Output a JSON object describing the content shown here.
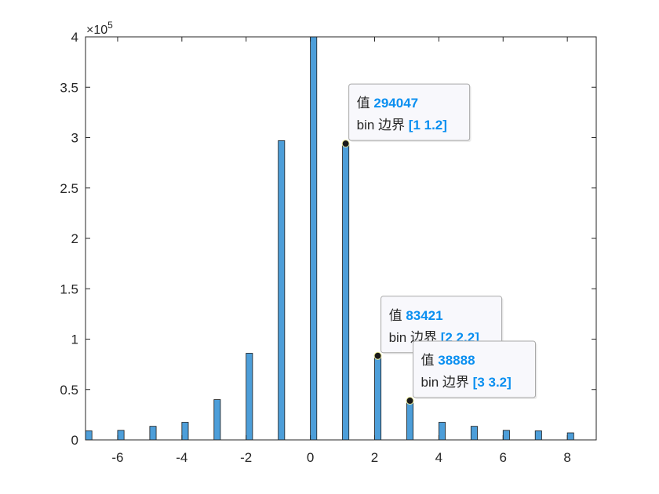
{
  "chart_data": {
    "type": "bar",
    "y_exponent_label": "×10",
    "y_exponent_power": "5",
    "xlim": [
      -7,
      8.9
    ],
    "ylim": [
      0,
      400000
    ],
    "bin_width": 0.2,
    "bar_color": "#4d9ed9",
    "bar_edge_color": "#1a1a1a",
    "x_ticks": [
      -6,
      -4,
      -2,
      0,
      2,
      4,
      6,
      8
    ],
    "x_tick_labels": [
      "-6",
      "-4",
      "-2",
      "0",
      "2",
      "4",
      "6",
      "8"
    ],
    "y_ticks": [
      0,
      50000,
      100000,
      150000,
      200000,
      250000,
      300000,
      350000,
      400000
    ],
    "y_tick_labels": [
      "0",
      "0.5",
      "1",
      "1.5",
      "2",
      "2.5",
      "3",
      "3.5",
      "4"
    ],
    "bins": [
      {
        "left": -7,
        "value": 9000
      },
      {
        "left": -6,
        "value": 9500
      },
      {
        "left": -5,
        "value": 13500
      },
      {
        "left": -4,
        "value": 17500
      },
      {
        "left": -3,
        "value": 40000
      },
      {
        "left": -2,
        "value": 86000
      },
      {
        "left": -1,
        "value": 297000
      },
      {
        "left": 0,
        "value": 400000
      },
      {
        "left": 1,
        "value": 294047
      },
      {
        "left": 2,
        "value": 83421
      },
      {
        "left": 3,
        "value": 38888
      },
      {
        "left": 4,
        "value": 17500
      },
      {
        "left": 5,
        "value": 13500
      },
      {
        "left": 6,
        "value": 9500
      },
      {
        "left": 7,
        "value": 9000
      },
      {
        "left": 8,
        "value": 7000
      }
    ],
    "annotations": [
      {
        "value_label": "值",
        "value": "294047",
        "edge_label": "bin 边界",
        "edge_value": "[1 1.2]",
        "point_x": 1.1,
        "point_y": 294047
      },
      {
        "value_label": "值",
        "value": "83421",
        "edge_label": "bin 边界",
        "edge_value": "[2 2.2]",
        "point_x": 2.1,
        "point_y": 83421
      },
      {
        "value_label": "值",
        "value": "38888",
        "edge_label": "bin 边界",
        "edge_value": "[3 3.2]",
        "point_x": 3.1,
        "point_y": 38888
      }
    ]
  }
}
